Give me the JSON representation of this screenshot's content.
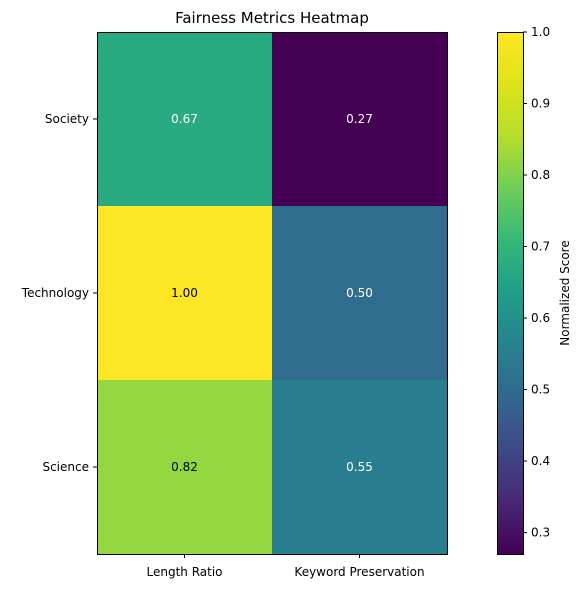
{
  "chart_data": {
    "type": "heatmap",
    "title": "Fairness Metrics Heatmap",
    "rows": [
      "Society",
      "Technology",
      "Science"
    ],
    "columns": [
      "Length Ratio",
      "Keyword Preservation"
    ],
    "values": [
      [
        0.67,
        0.27
      ],
      [
        1.0,
        0.5
      ],
      [
        0.82,
        0.55
      ]
    ],
    "cell_labels": [
      [
        "0.67",
        "0.27"
      ],
      [
        "1.00",
        "0.50"
      ],
      [
        "0.82",
        "0.55"
      ]
    ],
    "colormap": "viridis",
    "colorbar": {
      "label": "Normalized Score",
      "range": [
        0.27,
        1.0
      ],
      "ticks": [
        0.3,
        0.4,
        0.5,
        0.6,
        0.7,
        0.8,
        0.9,
        1.0
      ],
      "tick_labels": [
        "0.3",
        "0.4",
        "0.5",
        "0.6",
        "0.7",
        "0.8",
        "0.9",
        "1.0"
      ]
    },
    "grid": false
  }
}
